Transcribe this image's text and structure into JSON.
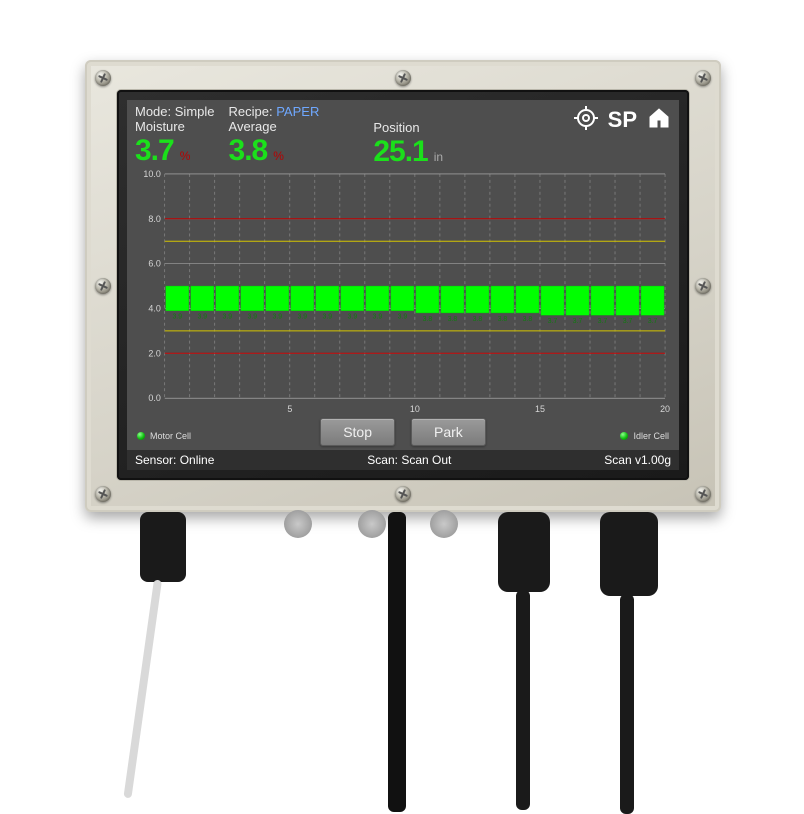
{
  "header": {
    "mode_label": "Mode:",
    "mode_value": "Simple",
    "recipe_label": "Recipe:",
    "recipe_value": "PAPER",
    "sp_label": "SP"
  },
  "readouts": {
    "moisture": {
      "label": "Moisture",
      "value": "3.7",
      "unit": "%"
    },
    "average": {
      "label": "Average",
      "value": "3.8",
      "unit": "%"
    },
    "position": {
      "label": "Position",
      "value": "25.1",
      "unit": "in"
    }
  },
  "chart": {
    "type": "bar",
    "ylim": [
      0,
      10
    ],
    "y_ticks": [
      0.0,
      2.0,
      4.0,
      6.0,
      8.0,
      10.0
    ],
    "y_tick_labels": [
      "0.0",
      "2.0",
      "4.0",
      "6.0",
      "8.0",
      "10.0"
    ],
    "x_ticks": [
      5,
      10,
      15,
      20
    ],
    "x_tick_labels": [
      "5",
      "10",
      "15",
      "20"
    ],
    "warn_lines_y": [
      3.0,
      7.0
    ],
    "alarm_lines_y": [
      2.0,
      8.0
    ],
    "values": [
      3.9,
      3.9,
      3.9,
      3.9,
      3.9,
      3.9,
      3.9,
      3.9,
      3.9,
      3.9,
      3.8,
      3.8,
      3.8,
      3.8,
      3.8,
      3.7,
      3.7,
      3.7,
      3.7,
      3.7
    ],
    "bar_labels": [
      "3.9",
      "3.9",
      "3.9",
      "3.9",
      "3.9",
      "3.9",
      "3.9",
      "3.9",
      "3.9",
      "3.9",
      "3.8",
      "3.8",
      "3.8",
      "3.8",
      "3.8",
      "3.7",
      "3.7",
      "3.7",
      "3.7",
      "3.7"
    ],
    "colors": {
      "background": "#4e4e4e",
      "grid": "#b9b9b9",
      "grid_dashed": "#a2a2a2",
      "axis_text": "#d6d6d6",
      "bar": "#00ff00",
      "bar_border": "#08c208",
      "warn_line": "#d4c400",
      "alarm_line": "#c20000",
      "value_text": "#0f7d0f"
    },
    "axis_fontsize": 9,
    "barlabel_fontsize": 7
  },
  "buttons": {
    "stop": "Stop",
    "park": "Park"
  },
  "cells": {
    "left": "Motor Cell",
    "right": "Idler Cell"
  },
  "status": {
    "sensor_label": "Sensor:",
    "sensor_value": "Online",
    "scan_label": "Scan:",
    "scan_value": "Scan Out",
    "version": "Scan v1.00g"
  },
  "palette": {
    "screen_bg": "#4e4e4e",
    "text": "#ffffff",
    "accent_green": "#1be01b",
    "accent_red": "#b80000",
    "accent_blue": "#6fa8ff"
  }
}
